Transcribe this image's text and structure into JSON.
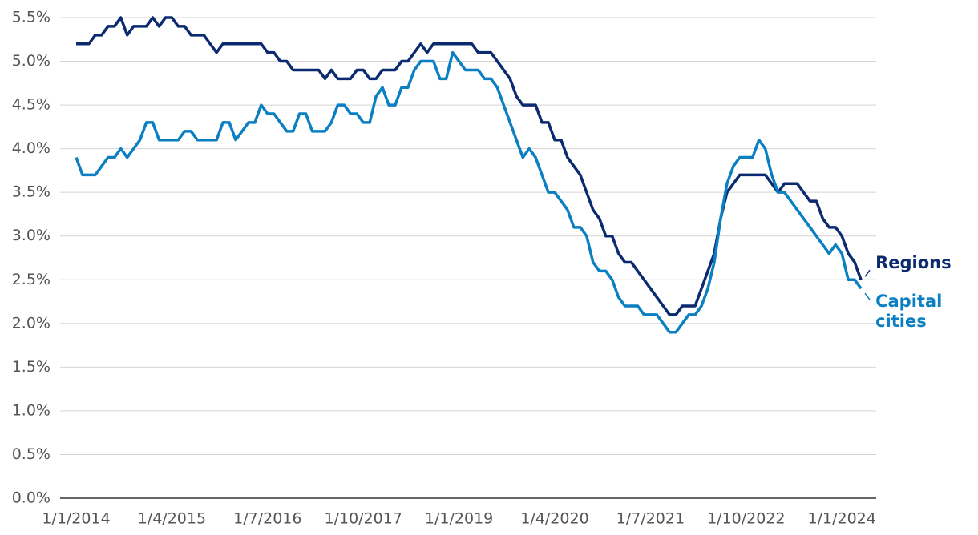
{
  "chart_data": {
    "type": "line",
    "categories": [
      "1/1/2014",
      null,
      null,
      null,
      null,
      null,
      null,
      null,
      null,
      null,
      null,
      null,
      null,
      null,
      null,
      "1/4/2015",
      null,
      null,
      null,
      null,
      null,
      null,
      null,
      null,
      null,
      null,
      null,
      null,
      null,
      null,
      "1/7/2016",
      null,
      null,
      null,
      null,
      null,
      null,
      null,
      null,
      null,
      null,
      null,
      null,
      null,
      null,
      "1/10/2017",
      null,
      null,
      null,
      null,
      null,
      null,
      null,
      null,
      null,
      null,
      null,
      null,
      null,
      null,
      "1/1/2019",
      null,
      null,
      null,
      null,
      null,
      null,
      null,
      null,
      null,
      null,
      null,
      null,
      null,
      null,
      "1/4/2020",
      null,
      null,
      null,
      null,
      null,
      null,
      null,
      null,
      null,
      null,
      null,
      null,
      null,
      null,
      "1/7/2021",
      null,
      null,
      null,
      null,
      null,
      null,
      null,
      null,
      null,
      null,
      null,
      null,
      null,
      null,
      "1/10/2022",
      null,
      null,
      null,
      null,
      null,
      null,
      null,
      null,
      null,
      null,
      null,
      null,
      null,
      null,
      "1/1/2024",
      null,
      null,
      null
    ],
    "series": [
      {
        "name": "Regions",
        "color": "#0b2a6f",
        "values": [
          5.2,
          5.2,
          5.2,
          5.3,
          5.3,
          5.4,
          5.4,
          5.5,
          5.3,
          5.4,
          5.4,
          5.4,
          5.5,
          5.4,
          5.5,
          5.5,
          5.4,
          5.4,
          5.3,
          5.3,
          5.3,
          5.2,
          5.1,
          5.2,
          5.2,
          5.2,
          5.2,
          5.2,
          5.2,
          5.2,
          5.1,
          5.1,
          5.0,
          5.0,
          4.9,
          4.9,
          4.9,
          4.9,
          4.9,
          4.8,
          4.9,
          4.8,
          4.8,
          4.8,
          4.9,
          4.9,
          4.8,
          4.8,
          4.9,
          4.9,
          4.9,
          5.0,
          5.0,
          5.1,
          5.2,
          5.1,
          5.2,
          5.2,
          5.2,
          5.2,
          5.2,
          5.2,
          5.2,
          5.1,
          5.1,
          5.1,
          5.0,
          4.9,
          4.8,
          4.6,
          4.5,
          4.5,
          4.5,
          4.3,
          4.3,
          4.1,
          4.1,
          3.9,
          3.8,
          3.7,
          3.5,
          3.3,
          3.2,
          3.0,
          3.0,
          2.8,
          2.7,
          2.7,
          2.6,
          2.5,
          2.4,
          2.3,
          2.2,
          2.1,
          2.1,
          2.2,
          2.2,
          2.2,
          2.4,
          2.6,
          2.8,
          3.2,
          3.5,
          3.6,
          3.7,
          3.7,
          3.7,
          3.7,
          3.7,
          3.6,
          3.5,
          3.6,
          3.6,
          3.6,
          3.5,
          3.4,
          3.4,
          3.2,
          3.1,
          3.1,
          3.0,
          2.8,
          2.7,
          2.5
        ]
      },
      {
        "name": "Capital cities",
        "color": "#0a7fc2",
        "values": [
          3.9,
          3.7,
          3.7,
          3.7,
          3.8,
          3.9,
          3.9,
          4.0,
          3.9,
          4.0,
          4.1,
          4.3,
          4.3,
          4.1,
          4.1,
          4.1,
          4.1,
          4.2,
          4.2,
          4.1,
          4.1,
          4.1,
          4.1,
          4.3,
          4.3,
          4.1,
          4.2,
          4.3,
          4.3,
          4.5,
          4.4,
          4.4,
          4.3,
          4.2,
          4.2,
          4.4,
          4.4,
          4.2,
          4.2,
          4.2,
          4.3,
          4.5,
          4.5,
          4.4,
          4.4,
          4.3,
          4.3,
          4.6,
          4.7,
          4.5,
          4.5,
          4.7,
          4.7,
          4.9,
          5.0,
          5.0,
          5.0,
          4.8,
          4.8,
          5.1,
          5.0,
          4.9,
          4.9,
          4.9,
          4.8,
          4.8,
          4.7,
          4.5,
          4.3,
          4.1,
          3.9,
          4.0,
          3.9,
          3.7,
          3.5,
          3.5,
          3.4,
          3.3,
          3.1,
          3.1,
          3.0,
          2.7,
          2.6,
          2.6,
          2.5,
          2.3,
          2.2,
          2.2,
          2.2,
          2.1,
          2.1,
          2.1,
          2.0,
          1.9,
          1.9,
          2.0,
          2.1,
          2.1,
          2.2,
          2.4,
          2.7,
          3.2,
          3.6,
          3.8,
          3.9,
          3.9,
          3.9,
          4.1,
          4.0,
          3.7,
          3.5,
          3.5,
          3.4,
          3.3,
          3.2,
          3.1,
          3.0,
          2.9,
          2.8,
          2.9,
          2.8,
          2.5,
          2.5,
          2.4
        ]
      }
    ],
    "ylim": [
      0,
      5.5
    ],
    "yticks": [
      {
        "value": 0,
        "label": "0.0%"
      },
      {
        "value": 0.5,
        "label": "0.5%"
      },
      {
        "value": 1,
        "label": "1.0%"
      },
      {
        "value": 1.5,
        "label": "1.5%"
      },
      {
        "value": 2,
        "label": "2.0%"
      },
      {
        "value": 2.5,
        "label": "2.5%"
      },
      {
        "value": 3,
        "label": "3.0%"
      },
      {
        "value": 3.5,
        "label": "3.5%"
      },
      {
        "value": 4,
        "label": "4.0%"
      },
      {
        "value": 4.5,
        "label": "4.5%"
      },
      {
        "value": 5,
        "label": "5.0%"
      },
      {
        "value": 5.5,
        "label": "5.5%"
      }
    ],
    "grid": true
  }
}
